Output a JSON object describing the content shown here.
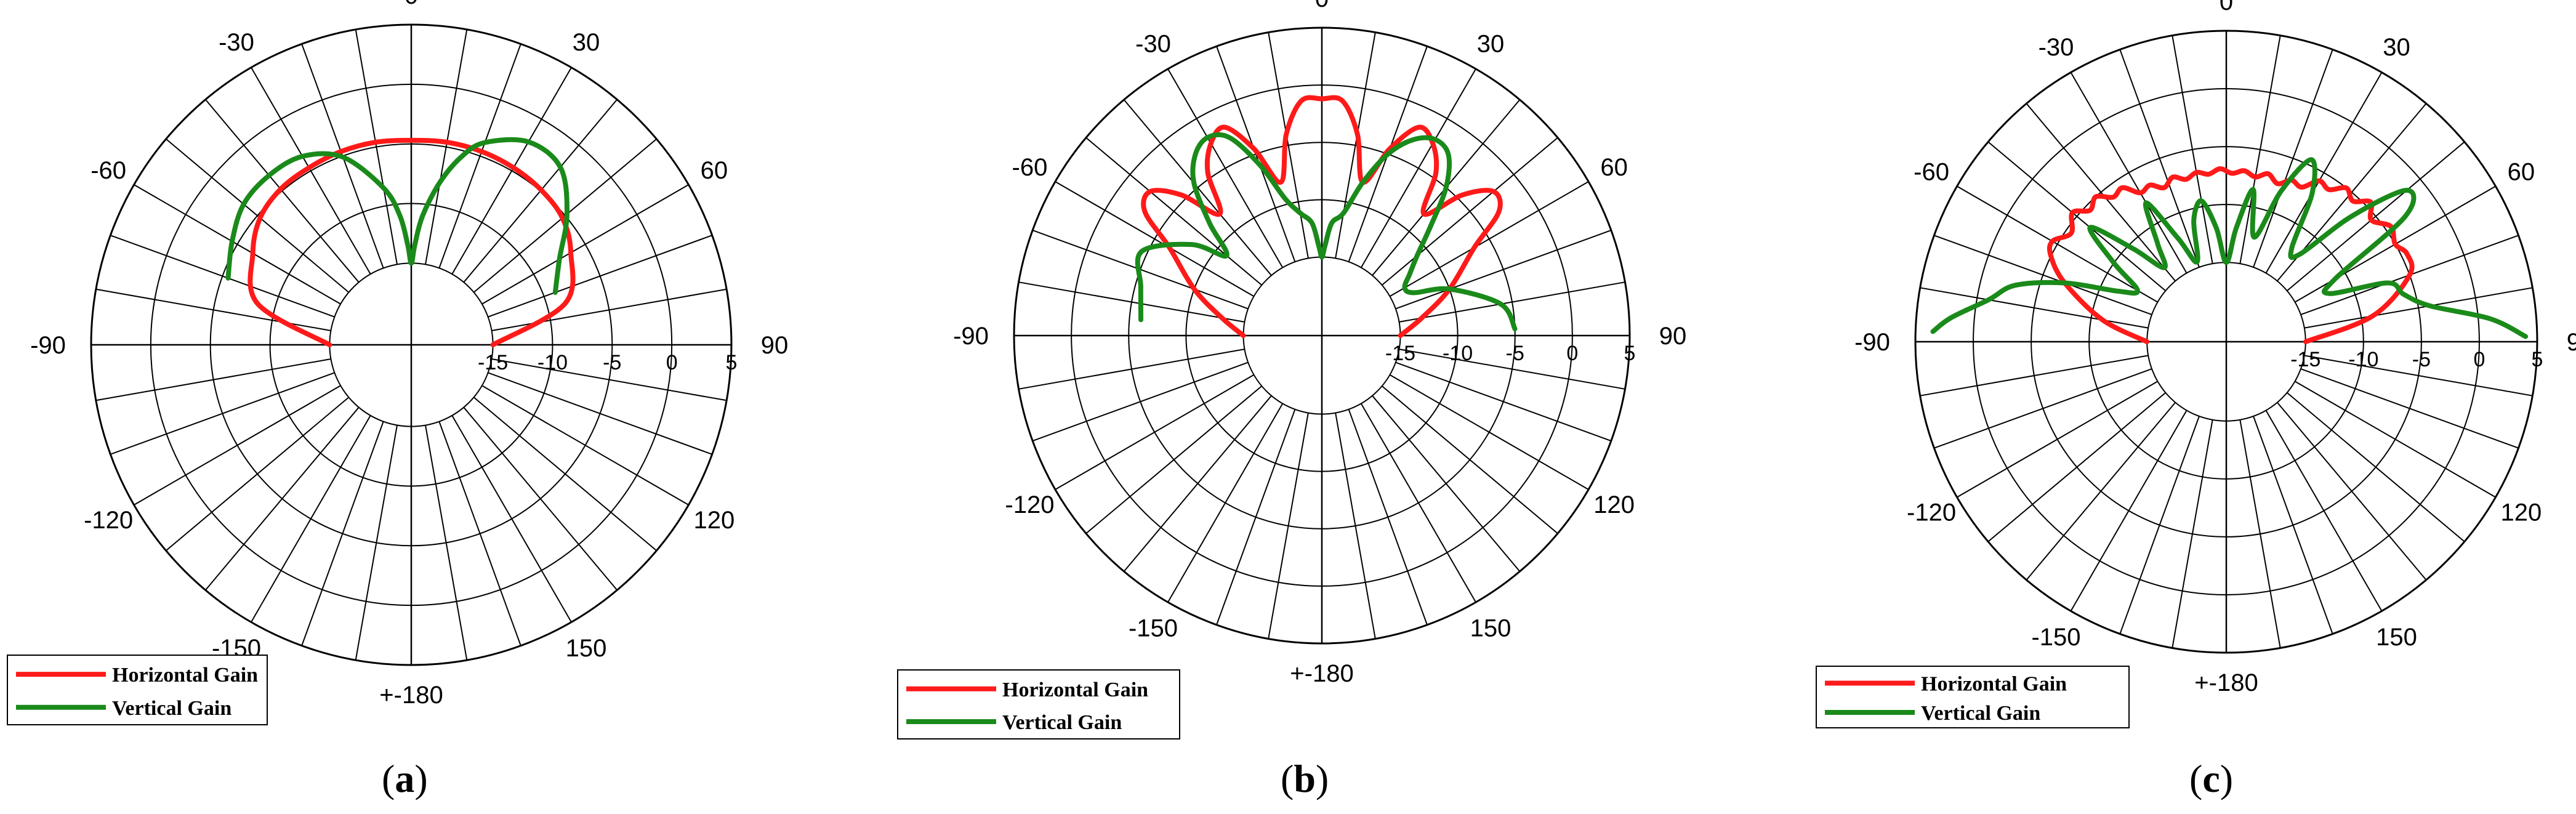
{
  "colors": {
    "horizontal": "#ff1a1a",
    "vertical": "#1a8a1a",
    "grid": "#000000"
  },
  "chart_data": [
    {
      "type": "polar-line",
      "caption_open": "(",
      "caption_letter": "a",
      "caption_close": ")",
      "r_ticks": [
        "-15",
        "-10",
        "-5",
        "0",
        "5"
      ],
      "r_range": [
        -15,
        5
      ],
      "angle_ticks": [
        "0",
        "30",
        "60",
        "90",
        "120",
        "150",
        "+-180",
        "-150",
        "-120",
        "-90",
        "-60",
        "-30"
      ],
      "angle_unit": "degree",
      "grid": true,
      "legend_position": "bottom-left",
      "legend": [
        "Horizontal Gain",
        "Vertical Gain"
      ],
      "series": [
        {
          "name": "Horizontal Gain",
          "angles": [
            -90,
            -75,
            -60,
            -50,
            -40,
            -30,
            -20,
            -10,
            0,
            10,
            20,
            30,
            40,
            50,
            60,
            75,
            90
          ],
          "values": [
            -15,
            -8.5,
            -6.5,
            -5.3,
            -4.8,
            -4.7,
            -4.6,
            -4.6,
            -4.7,
            -4.6,
            -4.6,
            -4.7,
            -4.9,
            -5.3,
            -6.4,
            -8.5,
            -15
          ]
        },
        {
          "name": "Vertical Gain",
          "angles": [
            -70,
            -60,
            -50,
            -40,
            -30,
            -20,
            -10,
            -5,
            -2,
            0,
            2,
            5,
            10,
            15,
            20,
            30,
            40,
            50,
            60,
            70
          ],
          "values": [
            -5.5,
            -4.5,
            -3.5,
            -3.3,
            -3.6,
            -5.1,
            -8.5,
            -11,
            -13.5,
            -15,
            -13.5,
            -11,
            -8,
            -5.5,
            -3.8,
            -2.2,
            -2.4,
            -4.8,
            -7.5,
            -9
          ]
        }
      ]
    },
    {
      "type": "polar-line",
      "caption_open": "(",
      "caption_letter": "b",
      "caption_close": ")",
      "r_ticks": [
        "-15",
        "-10",
        "-5",
        "0",
        "5"
      ],
      "r_range": [
        -15,
        5
      ],
      "angle_ticks": [
        "0",
        "30",
        "60",
        "90",
        "120",
        "150",
        "+-180",
        "-150",
        "-120",
        "-90",
        "-60",
        "-30"
      ],
      "angle_unit": "degree",
      "grid": true,
      "legend_position": "bottom-left",
      "legend": [
        "Horizontal Gain",
        "Vertical Gain"
      ],
      "series": [
        {
          "name": "Horizontal Gain",
          "angles": [
            -90,
            -80,
            -70,
            -60,
            -55,
            -50,
            -45,
            -40,
            -35,
            -30,
            -25,
            -20,
            -15,
            -10,
            -5,
            0,
            5,
            10,
            15,
            20,
            25,
            30,
            35,
            40,
            45,
            50,
            55,
            60,
            70,
            80,
            90
          ],
          "values": [
            -15,
            -13,
            -10,
            -6.5,
            -3,
            -2.3,
            -4.5,
            -8,
            -4.5,
            -2.5,
            -1.8,
            -4.5,
            -8,
            -4,
            -1.3,
            -1.2,
            -1.3,
            -4,
            -8,
            -4.5,
            -1.8,
            -2.5,
            -4.5,
            -8,
            -4.5,
            -2.3,
            -3,
            -6.5,
            -10,
            -13,
            -15
          ]
        },
        {
          "name": "Vertical Gain",
          "angles": [
            -85,
            -75,
            -65,
            -55,
            -50,
            -45,
            -40,
            -35,
            -30,
            -25,
            -20,
            -15,
            -10,
            -5,
            -2,
            0,
            2,
            5,
            10,
            15,
            20,
            25,
            30,
            35,
            40,
            45,
            50,
            55,
            60,
            65,
            70,
            80,
            88
          ],
          "values": [
            -6,
            -5.5,
            -4.5,
            -8,
            -11,
            -8,
            -4.5,
            -2.6,
            -1.9,
            -2.8,
            -6,
            -9.5,
            -11,
            -12,
            -14,
            -15,
            -14,
            -12,
            -11,
            -8,
            -5,
            -3,
            -2.1,
            -2.6,
            -5,
            -8.5,
            -11,
            -12.5,
            -13.5,
            -13,
            -10,
            -6,
            -5
          ]
        }
      ]
    },
    {
      "type": "polar-line",
      "caption_open": "(",
      "caption_letter": "c",
      "caption_close": ")",
      "r_ticks": [
        "-15",
        "-10",
        "-5",
        "0",
        "5"
      ],
      "r_range": [
        -15,
        5
      ],
      "angle_ticks": [
        "0",
        "30",
        "60",
        "90",
        "120",
        "150",
        "+-180",
        "-150",
        "-120",
        "-90",
        "-60",
        "-30"
      ],
      "angle_unit": "degree",
      "grid": true,
      "legend_position": "bottom-left",
      "legend": [
        "Horizontal Gain",
        "Vertical Gain"
      ],
      "series": [
        {
          "name": "Horizontal Gain",
          "angles": [
            -90,
            -80,
            -70,
            -64,
            -60,
            -55,
            -50,
            -46,
            -42,
            -38,
            -34,
            -30,
            -26,
            -22,
            -18,
            -14,
            -10,
            -6,
            -2,
            2,
            6,
            10,
            14,
            18,
            22,
            26,
            30,
            34,
            38,
            42,
            46,
            50,
            55,
            60,
            64,
            70,
            80,
            90
          ],
          "values": [
            -15,
            -11,
            -7,
            -5,
            -4.5,
            -5.5,
            -4.5,
            -5.5,
            -5,
            -6,
            -5.8,
            -7,
            -6.8,
            -7.5,
            -6.9,
            -7.4,
            -7,
            -7.3,
            -6.9,
            -7.3,
            -7,
            -7.4,
            -6.9,
            -7.5,
            -6.8,
            -7,
            -5.8,
            -6,
            -5,
            -5.5,
            -4.5,
            -5.5,
            -4.5,
            -5,
            -4.5,
            -5,
            -9,
            -15
          ]
        },
        {
          "name": "Vertical Gain",
          "angles": [
            -88,
            -85,
            -80,
            -75,
            -70,
            -65,
            -60,
            -55,
            -50,
            -45,
            -40,
            -35,
            -30,
            -25,
            -20,
            -15,
            -10,
            -5,
            0,
            5,
            10,
            15,
            20,
            25,
            30,
            35,
            40,
            45,
            50,
            55,
            60,
            65,
            70,
            75,
            80,
            85,
            89
          ],
          "values": [
            3.5,
            2,
            -1,
            -3,
            -7,
            -11.5,
            -13,
            -10,
            -6.5,
            -10.5,
            -13.5,
            -11.5,
            -8,
            -12,
            -14.5,
            -11,
            -9.5,
            -12,
            -15,
            -12,
            -8.5,
            -12.5,
            -8,
            -4.5,
            -7,
            -12,
            -12,
            -6.5,
            -1.5,
            -3,
            -11,
            -12,
            -7,
            -6,
            -4,
            1,
            4
          ]
        }
      ]
    }
  ]
}
